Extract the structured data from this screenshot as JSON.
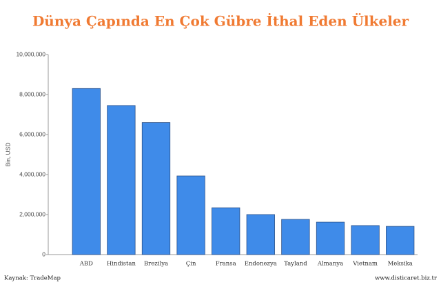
{
  "chart_data": {
    "type": "bar",
    "title": "Dünya Çapında En Çok Gübre İthal Eden Ülkeler",
    "y_label": "Bin, USD",
    "categories": [
      "ABD",
      "Hindistan",
      "Brezilya",
      "Çin",
      "Fransa",
      "Endonezya",
      "Tayland",
      "Almanya",
      "Vietnam",
      "Meksika"
    ],
    "values": [
      8300000,
      7450000,
      6600000,
      3930000,
      2340000,
      2000000,
      1760000,
      1620000,
      1450000,
      1410000
    ],
    "color": "#3f8be9",
    "ylim": [
      0,
      10000000
    ],
    "yticks": [
      0,
      {
        "value": 2000000,
        "label": "2,000,000"
      },
      {
        "value": 4000000,
        "label": "4,000,000"
      },
      {
        "value": 6000000,
        "label": "6,000,000"
      },
      {
        "value": 8000000,
        "label": "8,000,000"
      },
      {
        "value": 10000000,
        "label": "10,000,000"
      }
    ],
    "grid": false,
    "source": "Kaynak: TradeMap",
    "credit": "www.disticaret.biz.tr"
  }
}
